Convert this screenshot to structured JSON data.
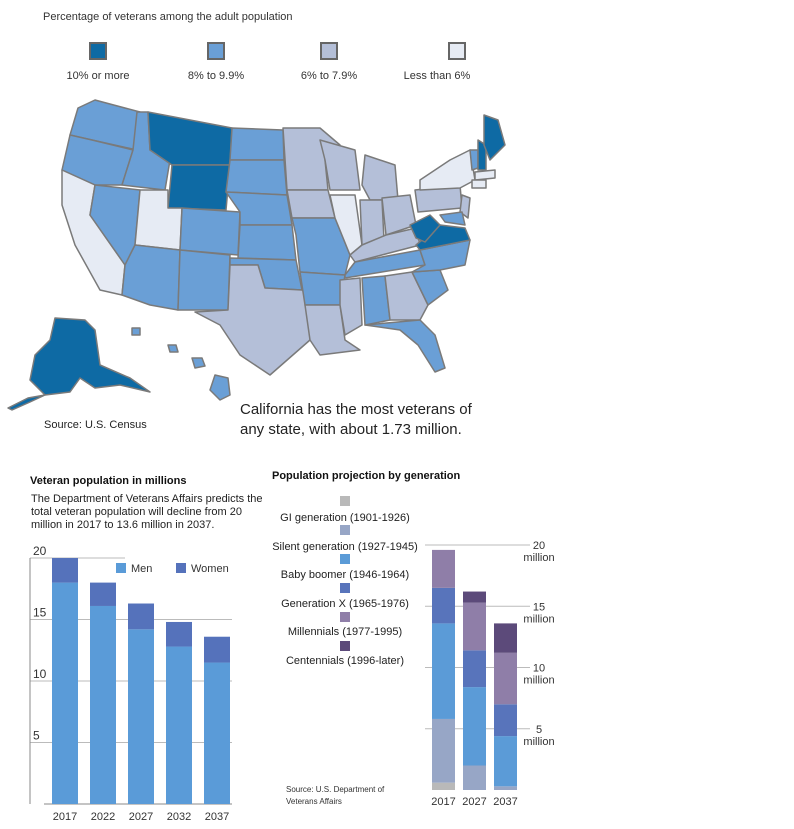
{
  "map": {
    "title": "Percentage of veterans among the adult population",
    "legend": [
      {
        "label": "10% or more",
        "color": "#0e6aa4"
      },
      {
        "label": "8% to 9.9%",
        "color": "#6a9fd6"
      },
      {
        "label": "6% to 7.9%",
        "color": "#b4bfd8"
      },
      {
        "label": "Less than 6%",
        "color": "#e6ebf4"
      }
    ],
    "source": "Source: U.S. Census",
    "callout": "California has the most veterans of any state, with about 1.73 million."
  },
  "chart_data": [
    {
      "type": "bar",
      "stacked": true,
      "title": "Veteran population in millions",
      "description": "The Department of Veterans Affairs predicts the total veteran population will decline from 20 million in 2017 to 13.6 million in 2037.",
      "categories": [
        "2017",
        "2022",
        "2027",
        "2032",
        "2037"
      ],
      "series": [
        {
          "name": "Men",
          "color": "#5a9bd8",
          "values": [
            18.0,
            16.1,
            14.2,
            12.8,
            11.5
          ]
        },
        {
          "name": "Women",
          "color": "#5572bb",
          "values": [
            2.0,
            1.9,
            2.1,
            2.0,
            2.1
          ]
        }
      ],
      "yticks": [
        "5",
        "10",
        "15",
        "20"
      ],
      "ylim": [
        0,
        20
      ],
      "legend_position": "top-right"
    },
    {
      "type": "bar",
      "stacked": true,
      "title": "Population projection by generation",
      "categories": [
        "2017",
        "2027",
        "2037"
      ],
      "series": [
        {
          "name": "GI generation (1901-1926)",
          "color": "#b9b9b9",
          "values": [
            0.6,
            0.0,
            0.0
          ]
        },
        {
          "name": "Silent generation (1927-1945)",
          "color": "#97a6c6",
          "values": [
            5.2,
            2.0,
            0.3
          ]
        },
        {
          "name": "Baby boomer (1946-1964)",
          "color": "#5b9bd7",
          "values": [
            7.8,
            6.4,
            4.1
          ]
        },
        {
          "name": "Generation X (1965-1976)",
          "color": "#5874bb",
          "values": [
            2.9,
            3.0,
            2.6
          ]
        },
        {
          "name": "Millennials (1977-1995)",
          "color": "#8f7ea8",
          "values": [
            3.1,
            3.9,
            4.2
          ]
        },
        {
          "name": "Centennials (1996-later)",
          "color": "#5c4a7a",
          "values": [
            0.0,
            0.9,
            2.4
          ]
        }
      ],
      "yticks": [
        "5",
        "10",
        "15",
        "20"
      ],
      "ytick_unit": "million",
      "ylim": [
        0,
        20
      ],
      "source": "Source: U.S. Department of Veterans Affairs"
    }
  ]
}
